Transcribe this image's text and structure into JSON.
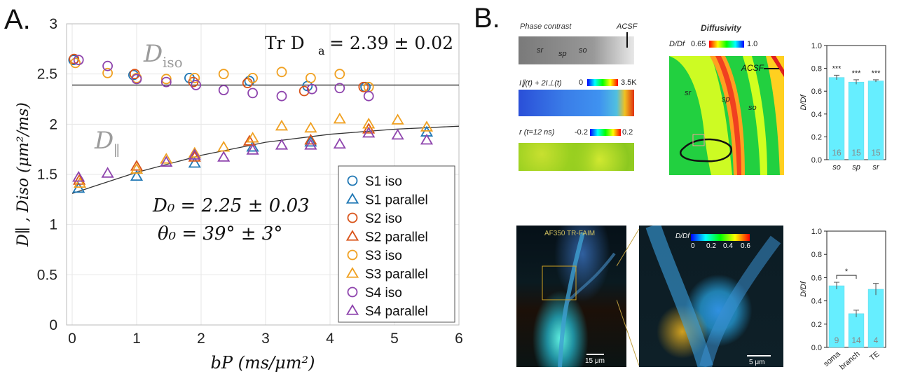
{
  "panel_a": {
    "letter": "A.",
    "annot_iso": "D",
    "annot_iso_sub": "iso",
    "annot_par": "D",
    "annot_par_sub": "∥",
    "trace_label": "Tr D",
    "trace_label_sub": "a",
    "trace_value": "= 2.39 ± 0.02",
    "d0_text": "D₀ = 2.25 ± 0.03",
    "theta_text": "θ₀ = 39° ± 3°",
    "ylabel": "D∥ , Diso (μm²/ms)",
    "xlabel": "bP (ms/μm²)",
    "colors": {
      "S1": "#1f77b4",
      "S2": "#d95319",
      "S3": "#f0a020",
      "S4": "#8e44ad",
      "fit": "#333333",
      "annot": "#999999"
    }
  },
  "panel_b": {
    "letter": "B.",
    "phase_title": "Phase contrast",
    "acsf": "ACSF",
    "sr": "sr",
    "sp": "sp",
    "so": "so",
    "intensity_label": "I∥(t) + 2I⊥(t)",
    "intensity_min": "0",
    "intensity_max": "3.5K",
    "r_label": "r (t=12 ns)",
    "r_min": "-0.2",
    "r_max": "0.2",
    "diff_title": "Diffusivity",
    "diff_label": "D/Df",
    "diff_min": "0.65",
    "diff_max": "1.0",
    "af_label": "AF350 TR-FAIM",
    "scale1": "15 μm",
    "scale2": "5 μm",
    "cbar2_label": "D/Df",
    "cbar2_ticks": [
      "0",
      "0.2",
      "0.4",
      "0.6"
    ]
  },
  "chart_data": [
    {
      "type": "scatter",
      "xlabel": "bP (ms/μm²)",
      "ylabel": "D∥ , Diso (μm²/ms)",
      "xlim": [
        0,
        6
      ],
      "ylim": [
        0,
        3
      ],
      "xticks": [
        "0",
        "1",
        "2",
        "3",
        "4",
        "5",
        "6"
      ],
      "yticks": [
        "0",
        "0.5",
        "1",
        "1.5",
        "2",
        "2.5",
        "3"
      ],
      "grid": true,
      "legend_position": "bottom-right",
      "series": [
        {
          "name": "S1 iso",
          "marker": "circle",
          "color": "#1f77b4",
          "x": [
            0.02,
            0.95,
            1.82,
            2.75,
            3.65,
            4.55
          ],
          "y": [
            2.64,
            2.49,
            2.46,
            2.43,
            2.38,
            2.37
          ]
        },
        {
          "name": "S1 parallel",
          "marker": "triangle",
          "color": "#1f77b4",
          "x": [
            0.1,
            1.0,
            1.9,
            2.8,
            3.7,
            5.5
          ],
          "y": [
            1.36,
            1.48,
            1.61,
            1.77,
            1.82,
            1.92
          ]
        },
        {
          "name": "S2 iso",
          "marker": "circle",
          "color": "#d95319",
          "x": [
            0.03,
            0.97,
            1.88,
            2.72,
            3.6,
            4.52
          ],
          "y": [
            2.65,
            2.5,
            2.42,
            2.41,
            2.33,
            2.37
          ]
        },
        {
          "name": "S2 parallel",
          "marker": "triangle",
          "color": "#d95319",
          "x": [
            0.11,
            1.0,
            1.9,
            2.75,
            3.7,
            4.6
          ],
          "y": [
            1.44,
            1.58,
            1.67,
            1.83,
            1.84,
            1.95
          ]
        },
        {
          "name": "S3 iso",
          "marker": "circle",
          "color": "#f0a020",
          "x": [
            0.05,
            0.55,
            1.0,
            1.46,
            1.9,
            2.35,
            2.8,
            3.25,
            3.7,
            4.15,
            4.6
          ],
          "y": [
            2.61,
            2.51,
            2.46,
            2.45,
            2.46,
            2.5,
            2.46,
            2.52,
            2.46,
            2.5,
            2.37
          ]
        },
        {
          "name": "S3 parallel",
          "marker": "triangle",
          "color": "#f0a020",
          "x": [
            0.12,
            1.0,
            1.46,
            1.9,
            2.35,
            2.8,
            3.25,
            3.7,
            4.15,
            4.6,
            5.05,
            5.5
          ],
          "y": [
            1.41,
            1.55,
            1.65,
            1.71,
            1.77,
            1.86,
            1.98,
            1.96,
            2.05,
            2.0,
            2.04,
            1.97
          ]
        },
        {
          "name": "S4 iso",
          "marker": "circle",
          "color": "#8e44ad",
          "x": [
            0.1,
            0.55,
            1.0,
            1.46,
            1.92,
            2.35,
            2.8,
            3.25,
            3.72,
            4.15,
            4.6
          ],
          "y": [
            2.64,
            2.58,
            2.45,
            2.42,
            2.39,
            2.34,
            2.31,
            2.28,
            2.35,
            2.36,
            2.28
          ]
        },
        {
          "name": "S4 parallel",
          "marker": "triangle",
          "color": "#8e44ad",
          "x": [
            0.1,
            0.55,
            1.46,
            1.9,
            2.35,
            2.8,
            3.25,
            3.7,
            4.15,
            4.6,
            5.05,
            5.5
          ],
          "y": [
            1.47,
            1.51,
            1.62,
            1.69,
            1.67,
            1.74,
            1.79,
            1.79,
            1.8,
            1.91,
            1.89,
            1.84
          ]
        }
      ],
      "lines": [
        {
          "name": "Tr Da fit",
          "type": "constant",
          "y": 2.39
        },
        {
          "name": "D parallel fit",
          "type": "curve",
          "x": [
            0,
            1,
            2,
            3,
            4,
            5,
            6
          ],
          "y": [
            1.31,
            1.52,
            1.69,
            1.82,
            1.9,
            1.95,
            1.98
          ]
        }
      ]
    },
    {
      "type": "bar",
      "ylabel": "D/Df",
      "ylim": [
        0,
        1.0
      ],
      "yticks": [
        "0.0",
        "0.2",
        "0.4",
        "0.6",
        "0.8",
        "1.0"
      ],
      "categories": [
        "so",
        "sp",
        "sr"
      ],
      "values": [
        0.72,
        0.68,
        0.69
      ],
      "errors": [
        0.02,
        0.02,
        0.01
      ],
      "counts": [
        "16",
        "15",
        "15"
      ],
      "significance": [
        "***",
        "***",
        "***"
      ],
      "color": "#66eeff"
    },
    {
      "type": "bar",
      "ylabel": "D/Df",
      "ylim": [
        0,
        1.0
      ],
      "yticks": [
        "0.0",
        "0.2",
        "0.4",
        "0.6",
        "0.8",
        "1.0"
      ],
      "categories": [
        "soma",
        "branch",
        "TE"
      ],
      "values": [
        0.53,
        0.29,
        0.5
      ],
      "errors": [
        0.03,
        0.03,
        0.05
      ],
      "counts": [
        "9",
        "14",
        "4"
      ],
      "significance_bracket": "*",
      "color": "#66eeff"
    }
  ]
}
